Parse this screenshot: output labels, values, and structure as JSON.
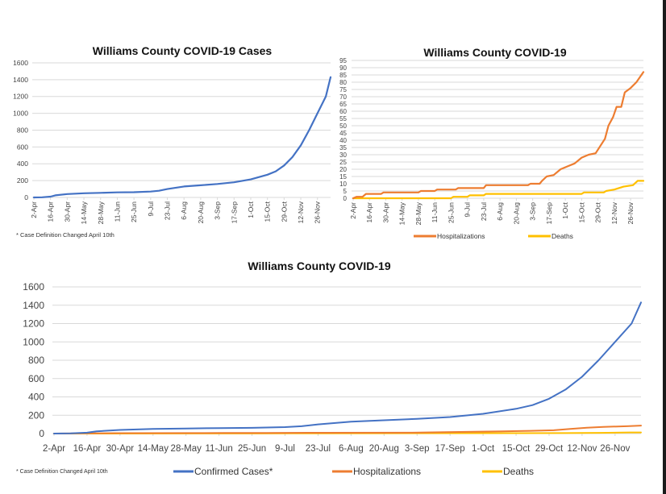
{
  "chart_data": [
    {
      "id": "cases",
      "type": "line",
      "title": "Williams County COVID-19 Cases",
      "xlabel": "",
      "ylabel": "",
      "ylim": [
        0,
        1600
      ],
      "yticks": [
        0,
        200,
        400,
        600,
        800,
        1000,
        1200,
        1400,
        1600
      ],
      "grid": true,
      "x_tick_labels": [
        "2-Apr",
        "16-Apr",
        "30-Apr",
        "14-May",
        "28-May",
        "11-Jun",
        "25-Jun",
        "9-Jul",
        "23-Jul",
        "6-Aug",
        "20-Aug",
        "3-Sep",
        "17-Sep",
        "1-Oct",
        "15-Oct",
        "29-Oct",
        "12-Nov",
        "26-Nov"
      ],
      "x_range_days": [
        0,
        249
      ],
      "footnote": "* Case Definition Changed April 10th",
      "series": [
        {
          "name": "Confirmed Cases*",
          "color": "#4472c4",
          "points": [
            [
              0,
              0
            ],
            [
              7,
              2
            ],
            [
              14,
              10
            ],
            [
              18,
              25
            ],
            [
              28,
              40
            ],
            [
              42,
              50
            ],
            [
              56,
              55
            ],
            [
              70,
              60
            ],
            [
              84,
              62
            ],
            [
              98,
              70
            ],
            [
              105,
              80
            ],
            [
              112,
              100
            ],
            [
              126,
              130
            ],
            [
              140,
              145
            ],
            [
              154,
              160
            ],
            [
              168,
              180
            ],
            [
              182,
              215
            ],
            [
              196,
              270
            ],
            [
              203,
              310
            ],
            [
              210,
              380
            ],
            [
              217,
              480
            ],
            [
              224,
              620
            ],
            [
              231,
              800
            ],
            [
              238,
              1000
            ],
            [
              245,
              1200
            ],
            [
              249,
              1430
            ]
          ]
        }
      ]
    },
    {
      "id": "hosp-deaths",
      "type": "line",
      "title": "Williams County COVID-19",
      "xlabel": "",
      "ylabel": "",
      "ylim": [
        0,
        95
      ],
      "yticks": [
        0,
        5,
        10,
        15,
        20,
        25,
        30,
        35,
        40,
        45,
        50,
        55,
        60,
        65,
        70,
        75,
        80,
        85,
        90,
        95
      ],
      "grid": true,
      "legend": "bottom",
      "x_tick_labels": [
        "2-Apr",
        "16-Apr",
        "30-Apr",
        "14-May",
        "28-May",
        "11-Jun",
        "25-Jun",
        "9-Jul",
        "23-Jul",
        "6-Aug",
        "20-Aug",
        "3-Sep",
        "17-Sep",
        "1-Oct",
        "15-Oct",
        "29-Oct",
        "12-Nov",
        "26-Nov"
      ],
      "x_range_days": [
        0,
        249
      ],
      "series": [
        {
          "name": "Hospitalizations",
          "color": "#ed7d31",
          "points": [
            [
              0,
              0
            ],
            [
              3,
              1
            ],
            [
              8,
              1
            ],
            [
              11,
              3
            ],
            [
              24,
              3
            ],
            [
              26,
              4
            ],
            [
              56,
              4
            ],
            [
              58,
              5
            ],
            [
              70,
              5
            ],
            [
              72,
              6
            ],
            [
              88,
              6
            ],
            [
              90,
              7
            ],
            [
              112,
              7
            ],
            [
              114,
              9
            ],
            [
              150,
              9
            ],
            [
              152,
              10
            ],
            [
              160,
              10
            ],
            [
              162,
              12
            ],
            [
              166,
              15
            ],
            [
              172,
              16
            ],
            [
              178,
              20
            ],
            [
              184,
              22
            ],
            [
              190,
              24
            ],
            [
              196,
              28
            ],
            [
              202,
              30
            ],
            [
              208,
              31
            ],
            [
              212,
              36
            ],
            [
              216,
              41
            ],
            [
              219,
              50
            ],
            [
              223,
              56
            ],
            [
              226,
              63
            ],
            [
              230,
              63
            ],
            [
              233,
              73
            ],
            [
              238,
              76
            ],
            [
              243,
              80
            ],
            [
              249,
              87
            ]
          ]
        },
        {
          "name": "Deaths",
          "color": "#ffc000",
          "points": [
            [
              0,
              0
            ],
            [
              84,
              0
            ],
            [
              86,
              1
            ],
            [
              98,
              1
            ],
            [
              100,
              2
            ],
            [
              112,
              2
            ],
            [
              114,
              3
            ],
            [
              196,
              3
            ],
            [
              198,
              4
            ],
            [
              215,
              4
            ],
            [
              217,
              5
            ],
            [
              224,
              6
            ],
            [
              232,
              8
            ],
            [
              240,
              9
            ],
            [
              244,
              12
            ],
            [
              249,
              12
            ]
          ]
        }
      ]
    },
    {
      "id": "combined",
      "type": "line",
      "title": "Williams County COVID-19",
      "xlabel": "",
      "ylabel": "",
      "ylim": [
        0,
        1600
      ],
      "yticks": [
        0,
        200,
        400,
        600,
        800,
        1000,
        1200,
        1400,
        1600
      ],
      "grid": true,
      "legend": "bottom",
      "x_tick_labels": [
        "2-Apr",
        "16-Apr",
        "30-Apr",
        "14-May",
        "28-May",
        "11-Jun",
        "25-Jun",
        "9-Jul",
        "23-Jul",
        "6-Aug",
        "20-Aug",
        "3-Sep",
        "17-Sep",
        "1-Oct",
        "15-Oct",
        "29-Oct",
        "12-Nov",
        "26-Nov"
      ],
      "x_range_days": [
        0,
        249
      ],
      "footnote": "* Case Definition Changed April 10th",
      "series": [
        {
          "name": "Confirmed Cases*",
          "color": "#4472c4",
          "points": [
            [
              0,
              0
            ],
            [
              7,
              2
            ],
            [
              14,
              10
            ],
            [
              18,
              25
            ],
            [
              28,
              40
            ],
            [
              42,
              50
            ],
            [
              56,
              55
            ],
            [
              70,
              60
            ],
            [
              84,
              62
            ],
            [
              98,
              70
            ],
            [
              105,
              80
            ],
            [
              112,
              100
            ],
            [
              126,
              130
            ],
            [
              140,
              145
            ],
            [
              154,
              160
            ],
            [
              168,
              180
            ],
            [
              182,
              215
            ],
            [
              196,
              270
            ],
            [
              203,
              310
            ],
            [
              210,
              380
            ],
            [
              217,
              480
            ],
            [
              224,
              620
            ],
            [
              231,
              800
            ],
            [
              238,
              1000
            ],
            [
              245,
              1200
            ],
            [
              249,
              1430
            ]
          ]
        },
        {
          "name": "Hospitalizations",
          "color": "#ed7d31",
          "points": [
            [
              0,
              0
            ],
            [
              11,
              3
            ],
            [
              26,
              4
            ],
            [
              58,
              5
            ],
            [
              72,
              6
            ],
            [
              90,
              7
            ],
            [
              114,
              9
            ],
            [
              152,
              10
            ],
            [
              166,
              15
            ],
            [
              178,
              20
            ],
            [
              190,
              24
            ],
            [
              202,
              30
            ],
            [
              212,
              36
            ],
            [
              219,
              50
            ],
            [
              226,
              63
            ],
            [
              233,
              73
            ],
            [
              243,
              80
            ],
            [
              249,
              87
            ]
          ]
        },
        {
          "name": "Deaths",
          "color": "#ffc000",
          "points": [
            [
              0,
              0
            ],
            [
              86,
              1
            ],
            [
              100,
              2
            ],
            [
              114,
              3
            ],
            [
              198,
              4
            ],
            [
              217,
              5
            ],
            [
              224,
              6
            ],
            [
              232,
              8
            ],
            [
              244,
              12
            ],
            [
              249,
              12
            ]
          ]
        }
      ]
    }
  ]
}
